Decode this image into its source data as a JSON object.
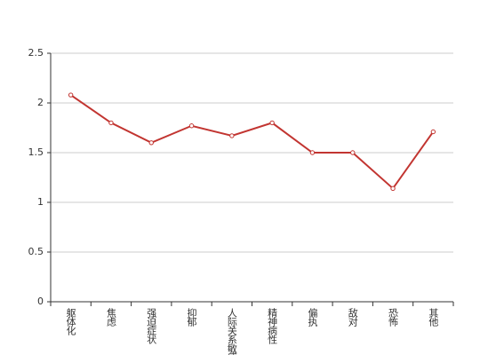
{
  "chart_data": {
    "type": "line",
    "categories": [
      "躯体化",
      "焦虑",
      "强迫症状",
      "抑郁",
      "人际关系敏感",
      "精神病性",
      "偏执",
      "敌对",
      "恐怖",
      "其他"
    ],
    "values": [
      2.08,
      1.8,
      1.6,
      1.77,
      1.67,
      1.8,
      1.5,
      1.5,
      1.14,
      1.71
    ],
    "color": "#c23531",
    "ylim": [
      0,
      2.5
    ],
    "yticks": [
      0,
      0.5,
      1,
      1.5,
      2,
      2.5
    ],
    "grid": true
  }
}
